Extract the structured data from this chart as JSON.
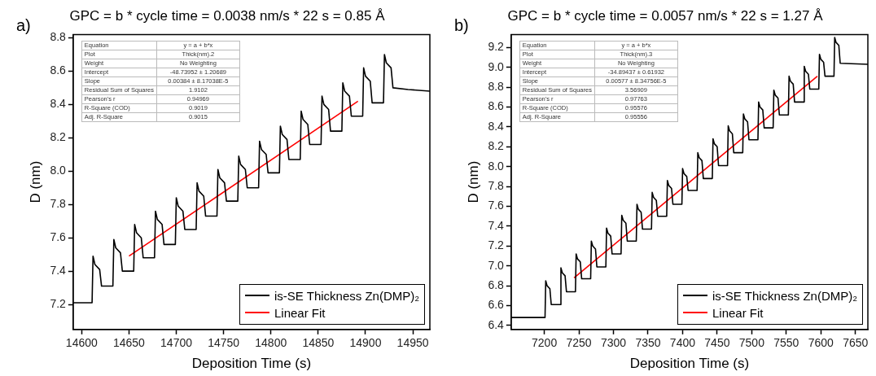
{
  "chart_data": [
    {
      "type": "line",
      "title": "GPC = b * cycle time = 0.0038 nm/s * 22 s = 0.85 Å",
      "xlabel": "Deposition Time (s)",
      "ylabel": "D (nm)",
      "xlim": [
        14591,
        14968
      ],
      "ylim": [
        7.05,
        8.82
      ],
      "xticks": [
        14600,
        14650,
        14700,
        14750,
        14800,
        14850,
        14900,
        14950
      ],
      "yticks": [
        7.2,
        7.4,
        7.6,
        7.8,
        {
          "value": 8,
          "label": "8.0"
        },
        8.2,
        8.4,
        8.6,
        8.8
      ],
      "legend": "bottom right",
      "annotations": [
        "a)",
        "Equation",
        "y = a + b*x",
        "Plot",
        "Thick(nm).2",
        "Weight",
        "No Weighting",
        "Intercept",
        "-48.73952 ± 1.20689",
        "Slope",
        "0.00384 ± 8.17038E-5",
        "Residual Sum of Squares",
        "1.9102",
        "Pearson's r",
        "0.94969",
        "R-Square (COD)",
        "0.9019",
        "Adj. R-Square",
        "0.9015"
      ],
      "series": [
        {
          "name": "is-SE Thickness Zn(DMP)₂",
          "color": "#000000",
          "x": [
            14591,
            14611,
            14612,
            14614,
            14619,
            14621,
            14633,
            14634,
            14636,
            14641,
            14643,
            14655,
            14656,
            14658,
            14663,
            14665,
            14677,
            14678,
            14680,
            14685,
            14687,
            14699,
            14700,
            14702,
            14707,
            14709,
            14721,
            14722,
            14724,
            14729,
            14731,
            14743,
            14744,
            14746,
            14751,
            14753,
            14765,
            14766,
            14768,
            14773,
            14775,
            14787,
            14788,
            14790,
            14795,
            14797,
            14809,
            14810,
            14812,
            14817,
            14819,
            14831,
            14832,
            14834,
            14839,
            14841,
            14853,
            14854,
            14856,
            14861,
            14863,
            14875,
            14876,
            14878,
            14883,
            14885,
            14897,
            14898,
            14900,
            14905,
            14907,
            14919,
            14920,
            14922,
            14927,
            14929,
            14945,
            14968
          ],
          "values": [
            7.21,
            7.21,
            7.49,
            7.44,
            7.41,
            7.31,
            7.31,
            7.59,
            7.54,
            7.51,
            7.4,
            7.4,
            7.68,
            7.63,
            7.6,
            7.48,
            7.48,
            7.76,
            7.71,
            7.68,
            7.56,
            7.56,
            7.84,
            7.79,
            7.76,
            7.65,
            7.65,
            7.93,
            7.88,
            7.85,
            7.73,
            7.73,
            8.01,
            7.96,
            7.93,
            7.82,
            7.82,
            8.09,
            8.04,
            8.01,
            7.9,
            7.9,
            8.18,
            8.13,
            8.1,
            7.99,
            7.99,
            8.27,
            8.22,
            8.19,
            8.07,
            8.07,
            8.36,
            8.31,
            8.28,
            8.16,
            8.16,
            8.45,
            8.4,
            8.37,
            8.24,
            8.24,
            8.53,
            8.48,
            8.45,
            8.33,
            8.33,
            8.62,
            8.57,
            8.54,
            8.41,
            8.41,
            8.7,
            8.65,
            8.62,
            8.5,
            8.49,
            8.48
          ]
        },
        {
          "name": "Linear Fit",
          "color": "#ff0000",
          "x": [
            14650,
            14892
          ],
          "values": [
            7.49,
            8.42
          ]
        }
      ]
    },
    {
      "type": "line",
      "title": "GPC = b * cycle time = 0.0057 nm/s * 22 s = 1.27 Å",
      "xlabel": "Deposition Time (s)",
      "ylabel": "D (nm)",
      "xlim": [
        7152,
        7668
      ],
      "ylim": [
        6.36,
        9.33
      ],
      "xticks": [
        7200,
        7250,
        7300,
        7350,
        7400,
        7450,
        7500,
        7550,
        7600,
        7650
      ],
      "yticks": [
        6.4,
        6.6,
        6.8,
        {
          "value": 7,
          "label": "7.0"
        },
        7.2,
        7.4,
        7.6,
        7.8,
        {
          "value": 8,
          "label": "8.0"
        },
        8.2,
        8.4,
        8.6,
        8.8,
        {
          "value": 9,
          "label": "9.0"
        },
        9.2
      ],
      "legend": "bottom right",
      "annotations": [
        "b)",
        "Equation",
        "y = a + b*x",
        "Plot",
        "Thick(nm).3",
        "Weight",
        "No Weighting",
        "Intercept",
        "-34.89437 ± 0.61932",
        "Slope",
        "0.00577 ± 8.34756E-5",
        "Residual Sum of Squares",
        "3.56909",
        "Pearson's r",
        "0.97763",
        "R-Square (COD)",
        "0.95576",
        "Adj. R-Square",
        "0.95556"
      ],
      "series": [
        {
          "name": "is-SE Thickness Zn(DMP)₂",
          "color": "#000000",
          "x": [
            7152,
            7201,
            7202,
            7204,
            7208,
            7210,
            7223,
            7224,
            7226,
            7230,
            7232,
            7245,
            7246,
            7248,
            7252,
            7254,
            7267,
            7268,
            7270,
            7274,
            7276,
            7289,
            7290,
            7292,
            7296,
            7298,
            7311,
            7312,
            7314,
            7318,
            7320,
            7333,
            7334,
            7336,
            7340,
            7342,
            7355,
            7356,
            7358,
            7362,
            7364,
            7377,
            7378,
            7380,
            7384,
            7386,
            7399,
            7400,
            7402,
            7406,
            7408,
            7421,
            7422,
            7424,
            7428,
            7430,
            7443,
            7444,
            7446,
            7450,
            7452,
            7465,
            7466,
            7468,
            7472,
            7474,
            7487,
            7488,
            7490,
            7494,
            7496,
            7509,
            7510,
            7512,
            7516,
            7518,
            7531,
            7532,
            7534,
            7538,
            7540,
            7553,
            7554,
            7556,
            7560,
            7562,
            7575,
            7576,
            7578,
            7582,
            7584,
            7597,
            7598,
            7600,
            7604,
            7606,
            7619,
            7620,
            7622,
            7626,
            7628,
            7668
          ],
          "values": [
            6.48,
            6.48,
            6.85,
            6.8,
            6.77,
            6.61,
            6.61,
            6.98,
            6.93,
            6.9,
            6.74,
            6.74,
            7.12,
            7.07,
            7.04,
            6.87,
            6.87,
            7.25,
            7.2,
            7.17,
            6.99,
            6.99,
            7.38,
            7.33,
            7.3,
            7.12,
            7.12,
            7.51,
            7.46,
            7.43,
            7.25,
            7.25,
            7.62,
            7.57,
            7.54,
            7.37,
            7.37,
            7.74,
            7.69,
            7.66,
            7.5,
            7.5,
            7.86,
            7.81,
            7.78,
            7.62,
            7.62,
            7.98,
            7.93,
            7.9,
            7.76,
            7.76,
            8.14,
            8.09,
            8.06,
            7.88,
            7.88,
            8.28,
            8.23,
            8.2,
            8.01,
            8.01,
            8.41,
            8.36,
            8.33,
            8.14,
            8.14,
            8.53,
            8.48,
            8.45,
            8.27,
            8.27,
            8.65,
            8.6,
            8.57,
            8.39,
            8.39,
            8.77,
            8.72,
            8.69,
            8.52,
            8.52,
            8.91,
            8.86,
            8.83,
            8.65,
            8.65,
            9.01,
            8.96,
            8.93,
            8.78,
            8.78,
            9.13,
            9.08,
            9.05,
            8.91,
            8.91,
            9.3,
            9.25,
            9.22,
            9.04,
            9.03
          ]
        },
        {
          "name": "Linear Fit",
          "color": "#ff0000",
          "x": [
            7243,
            7595
          ],
          "values": [
            6.88,
            8.91
          ]
        }
      ]
    }
  ]
}
